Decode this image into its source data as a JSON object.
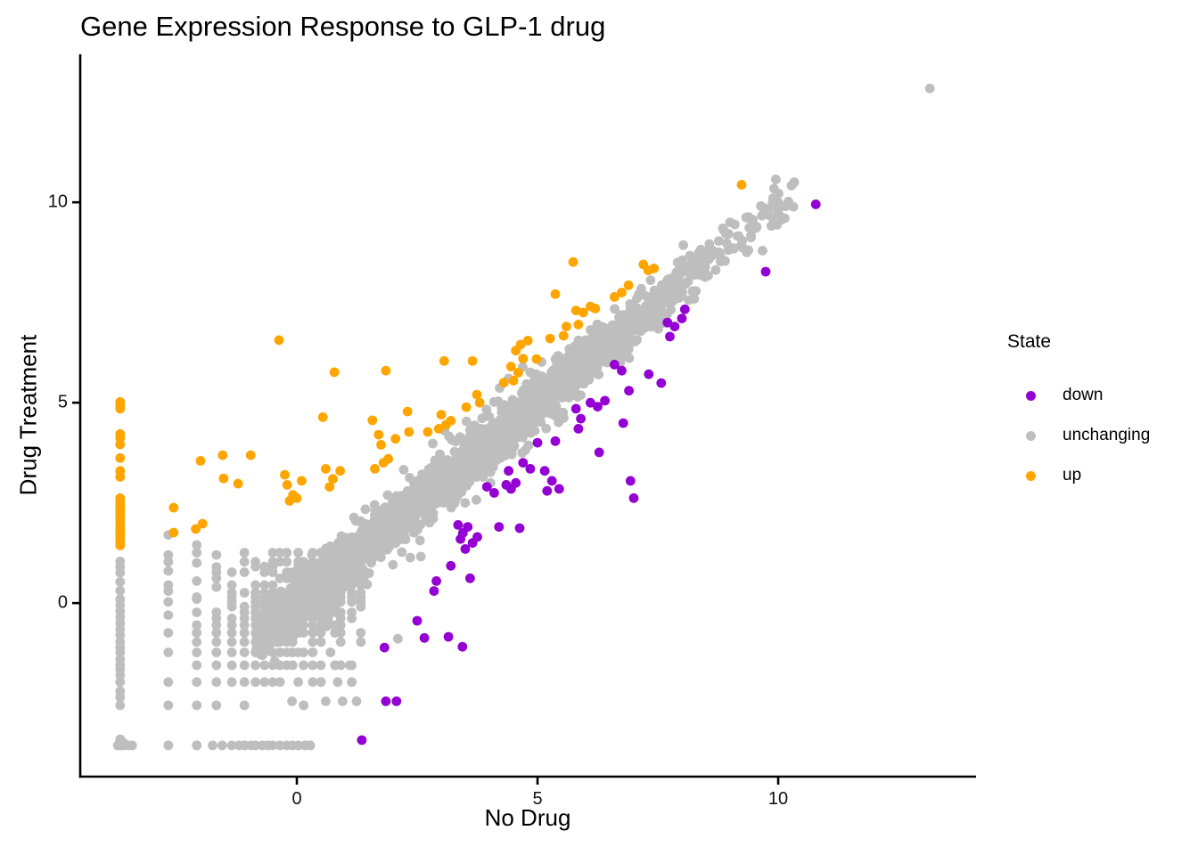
{
  "chart_data": {
    "type": "scatter",
    "title": "Gene Expression Response to GLP-1 drug",
    "xlabel": "No Drug",
    "ylabel": "Drug Treatment",
    "xlim": [
      -4.5,
      14.11
    ],
    "ylim": [
      -4.33,
      13.67
    ],
    "xticks": [
      0,
      5,
      10
    ],
    "yticks": [
      0,
      5,
      10
    ],
    "xtick_labels": [
      "0",
      "5",
      "10"
    ],
    "ytick_labels": [
      "0",
      "5",
      "10"
    ],
    "grid": false,
    "theme": "classic",
    "point_radius_px": 5.4,
    "colors": {
      "down": "#9400D3",
      "unchanging": "#BEBEBE",
      "up": "#FFA500",
      "axis": "#000000"
    },
    "legend": {
      "title": "State",
      "position": "right",
      "entries": [
        {
          "label": "down",
          "color": "#9400D3"
        },
        {
          "label": "unchanging",
          "color": "#BEBEBE"
        },
        {
          "label": "up",
          "color": "#FFA500"
        }
      ]
    },
    "series": [
      {
        "name": "down",
        "color": "#9400D3",
        "points": [
          [
            10.78,
            9.95
          ],
          [
            9.74,
            8.27
          ],
          [
            7.7,
            7.0
          ],
          [
            7.85,
            6.9
          ],
          [
            8.0,
            7.1
          ],
          [
            8.06,
            7.33
          ],
          [
            7.75,
            6.65
          ],
          [
            6.6,
            5.95
          ],
          [
            6.75,
            5.8
          ],
          [
            6.9,
            5.3
          ],
          [
            7.31,
            5.71
          ],
          [
            7.57,
            5.49
          ],
          [
            6.1,
            5.0
          ],
          [
            6.25,
            4.9
          ],
          [
            6.4,
            5.05
          ],
          [
            5.8,
            4.85
          ],
          [
            5.9,
            4.6
          ],
          [
            5.85,
            4.35
          ],
          [
            6.78,
            4.49
          ],
          [
            6.28,
            3.76
          ],
          [
            5.0,
            4.0
          ],
          [
            5.37,
            4.04
          ],
          [
            4.4,
            3.3
          ],
          [
            4.55,
            3.0
          ],
          [
            4.7,
            3.5
          ],
          [
            4.85,
            3.35
          ],
          [
            4.45,
            2.85
          ],
          [
            5.15,
            3.3
          ],
          [
            5.3,
            3.05
          ],
          [
            5.45,
            2.85
          ],
          [
            5.2,
            2.8
          ],
          [
            3.95,
            2.9
          ],
          [
            4.1,
            2.75
          ],
          [
            4.35,
            2.95
          ],
          [
            6.93,
            3.05
          ],
          [
            7.0,
            2.62
          ],
          [
            3.35,
            1.95
          ],
          [
            3.45,
            1.75
          ],
          [
            3.55,
            1.9
          ],
          [
            3.65,
            1.5
          ],
          [
            3.5,
            1.35
          ],
          [
            3.4,
            1.6
          ],
          [
            3.75,
            1.65
          ],
          [
            4.2,
            1.9
          ],
          [
            4.63,
            1.87
          ],
          [
            3.2,
            0.93
          ],
          [
            3.6,
            0.62
          ],
          [
            2.85,
            0.3
          ],
          [
            2.9,
            0.55
          ],
          [
            2.5,
            -0.44
          ],
          [
            2.65,
            -0.87
          ],
          [
            3.15,
            -0.84
          ],
          [
            3.44,
            -1.09
          ],
          [
            1.82,
            -1.11
          ],
          [
            1.85,
            -2.45
          ],
          [
            2.07,
            -2.45
          ],
          [
            1.35,
            -3.42
          ]
        ]
      },
      {
        "name": "unchanging",
        "color": "#BEBEBE",
        "points": [
          [
            13.15,
            12.84
          ],
          [
            10.0,
            10.0
          ],
          [
            10.15,
            9.9
          ],
          [
            9.95,
            10.06
          ],
          [
            9.4,
            9.6
          ],
          [
            9.26,
            8.87
          ],
          [
            8.85,
            9.35
          ],
          [
            9.0,
            9.5
          ],
          [
            2.1,
            -0.89
          ],
          [
            1.24,
            -2.45
          ],
          [
            0.95,
            -2.45
          ],
          [
            0.6,
            -2.45
          ],
          [
            -0.1,
            -2.45
          ],
          [
            3.89,
            4.22
          ],
          [
            0.8,
            -1.55
          ],
          [
            1.1,
            -1.55
          ],
          [
            0.7,
            -1.23
          ],
          [
            0.5,
            -1.97
          ],
          [
            0.85,
            -1.97
          ],
          [
            -2.67,
            1.7
          ],
          [
            -2.67,
            1.2
          ],
          [
            -2.67,
            0.8
          ],
          [
            -2.67,
            0.3
          ],
          [
            -2.67,
            -0.3
          ],
          [
            -2.08,
            1.45
          ],
          [
            -2.08,
            1.0
          ],
          [
            -2.08,
            0.55
          ],
          [
            -2.08,
            0.1
          ],
          [
            -1.67,
            0.9
          ],
          [
            -1.67,
            0.4
          ],
          [
            -1.67,
            1.2
          ],
          [
            -3.6,
            -3.49
          ],
          [
            -3.72,
            -3.55
          ],
          [
            0.17,
            -3.55
          ],
          [
            0.28,
            -3.55
          ]
        ],
        "generated": true
      },
      {
        "name": "up",
        "color": "#FFA500",
        "points": [
          [
            -3.67,
            5.02
          ],
          [
            -3.67,
            4.93
          ],
          [
            -3.67,
            4.85
          ],
          [
            -3.67,
            4.22
          ],
          [
            -3.67,
            4.12
          ],
          [
            -3.67,
            3.96
          ],
          [
            -3.67,
            3.62
          ],
          [
            -3.67,
            3.3
          ],
          [
            -3.67,
            3.15
          ],
          [
            -3.67,
            2.62
          ],
          [
            -3.67,
            2.55
          ],
          [
            -3.67,
            2.48
          ],
          [
            -3.67,
            2.42
          ],
          [
            -3.67,
            2.35
          ],
          [
            -3.67,
            2.28
          ],
          [
            -3.67,
            2.2
          ],
          [
            -3.67,
            2.12
          ],
          [
            -3.67,
            2.05
          ],
          [
            -3.67,
            1.95
          ],
          [
            -3.67,
            1.85
          ],
          [
            -3.67,
            1.78
          ],
          [
            -3.67,
            1.7
          ],
          [
            -3.67,
            1.62
          ],
          [
            -3.67,
            1.52
          ],
          [
            -3.67,
            1.44
          ],
          [
            -2.56,
            2.38
          ],
          [
            -2.56,
            1.76
          ],
          [
            -2.1,
            1.85
          ],
          [
            -1.96,
            1.98
          ],
          [
            -2.0,
            3.55
          ],
          [
            -1.54,
            3.69
          ],
          [
            -0.96,
            3.69
          ],
          [
            -1.52,
            3.11
          ],
          [
            -1.22,
            2.98
          ],
          [
            -0.37,
            6.56
          ],
          [
            -0.25,
            3.2
          ],
          [
            -0.2,
            2.95
          ],
          [
            -0.08,
            2.7
          ],
          [
            0.0,
            2.62
          ],
          [
            -0.15,
            2.55
          ],
          [
            0.1,
            3.05
          ],
          [
            0.54,
            4.64
          ],
          [
            0.78,
            5.76
          ],
          [
            0.6,
            3.35
          ],
          [
            0.75,
            3.1
          ],
          [
            0.9,
            3.3
          ],
          [
            0.68,
            2.9
          ],
          [
            1.85,
            5.8
          ],
          [
            1.57,
            4.56
          ],
          [
            2.3,
            4.78
          ],
          [
            2.33,
            4.27
          ],
          [
            1.7,
            4.2
          ],
          [
            1.75,
            3.95
          ],
          [
            1.9,
            3.6
          ],
          [
            1.62,
            3.35
          ],
          [
            2.05,
            4.1
          ],
          [
            1.8,
            3.5
          ],
          [
            3.06,
            6.04
          ],
          [
            3.65,
            6.04
          ],
          [
            3.74,
            5.2
          ],
          [
            3.52,
            4.89
          ],
          [
            3.8,
            5.0
          ],
          [
            3.0,
            4.7
          ],
          [
            3.1,
            4.45
          ],
          [
            3.2,
            4.55
          ],
          [
            2.72,
            4.27
          ],
          [
            2.95,
            4.35
          ],
          [
            4.3,
            5.5
          ],
          [
            4.45,
            5.9
          ],
          [
            4.55,
            6.3
          ],
          [
            4.65,
            6.45
          ],
          [
            4.8,
            6.55
          ],
          [
            4.6,
            5.75
          ],
          [
            4.5,
            5.55
          ],
          [
            4.98,
            6.09
          ],
          [
            4.7,
            6.1
          ],
          [
            5.26,
            6.6
          ],
          [
            5.54,
            6.67
          ],
          [
            5.37,
            7.71
          ],
          [
            5.74,
            8.51
          ],
          [
            5.8,
            7.3
          ],
          [
            5.95,
            7.25
          ],
          [
            6.1,
            7.4
          ],
          [
            6.2,
            7.35
          ],
          [
            5.6,
            6.9
          ],
          [
            5.85,
            6.95
          ],
          [
            6.6,
            7.64
          ],
          [
            6.89,
            7.93
          ],
          [
            7.2,
            8.45
          ],
          [
            7.3,
            8.3
          ],
          [
            7.42,
            8.35
          ],
          [
            6.75,
            7.75
          ],
          [
            9.24,
            10.44
          ]
        ]
      }
    ],
    "generated": {
      "seed": 20240117,
      "band": {
        "n": 2600,
        "x_mean": 3.3,
        "x_sd": 2.7,
        "x_min": -0.85,
        "x_max": 10.35,
        "y_sd": 0.3,
        "y_clip": 0.95
      },
      "strays": {
        "n": 120,
        "x_min": -0.6,
        "x_max": 5.6,
        "y_sd": 0.7,
        "y_clip": 1.45
      },
      "lattice": {
        "base": 1.0,
        "spread": 1.5,
        "x_levels": [
          -3.67,
          -2.67,
          -2.08,
          -1.67,
          -1.35,
          -1.09,
          -0.86,
          -0.67,
          -0.5,
          -0.35,
          -0.21,
          -0.09,
          0.03,
          0.14,
          0.33,
          0.5,
          0.65,
          0.79,
          0.91,
          1.14,
          1.33
        ],
        "y_levels": [
          -3.55,
          -2.55,
          -1.97,
          -1.55,
          -1.23,
          -0.97,
          -0.74,
          -0.55,
          -0.38,
          -0.23,
          -0.09,
          0.03,
          0.15,
          0.26,
          0.45,
          0.62,
          0.77,
          0.91,
          1.03,
          1.26
        ]
      },
      "left_column": {
        "x": -3.67,
        "y_levels": [
          -3.55,
          -3.4,
          -2.55,
          -2.35,
          -2.2,
          -1.97,
          -1.8,
          -1.65,
          -1.55,
          -1.4,
          -1.23,
          -1.1,
          -0.97,
          -0.8,
          -0.65,
          -0.5,
          -0.35,
          -0.2,
          -0.05,
          0.1,
          0.31,
          0.53,
          0.76,
          0.9,
          1.04
        ]
      },
      "bottom_row": {
        "y": -3.55,
        "x_levels": [
          -3.67,
          -3.6,
          -3.5,
          -3.42,
          -2.67,
          -2.08,
          -1.75,
          -1.55,
          -1.35,
          -1.2,
          -1.09,
          -0.95,
          -0.86,
          -0.72,
          -0.6,
          -0.5,
          -0.35,
          -0.21,
          -0.09,
          0.03,
          0.17,
          0.28
        ]
      }
    }
  }
}
